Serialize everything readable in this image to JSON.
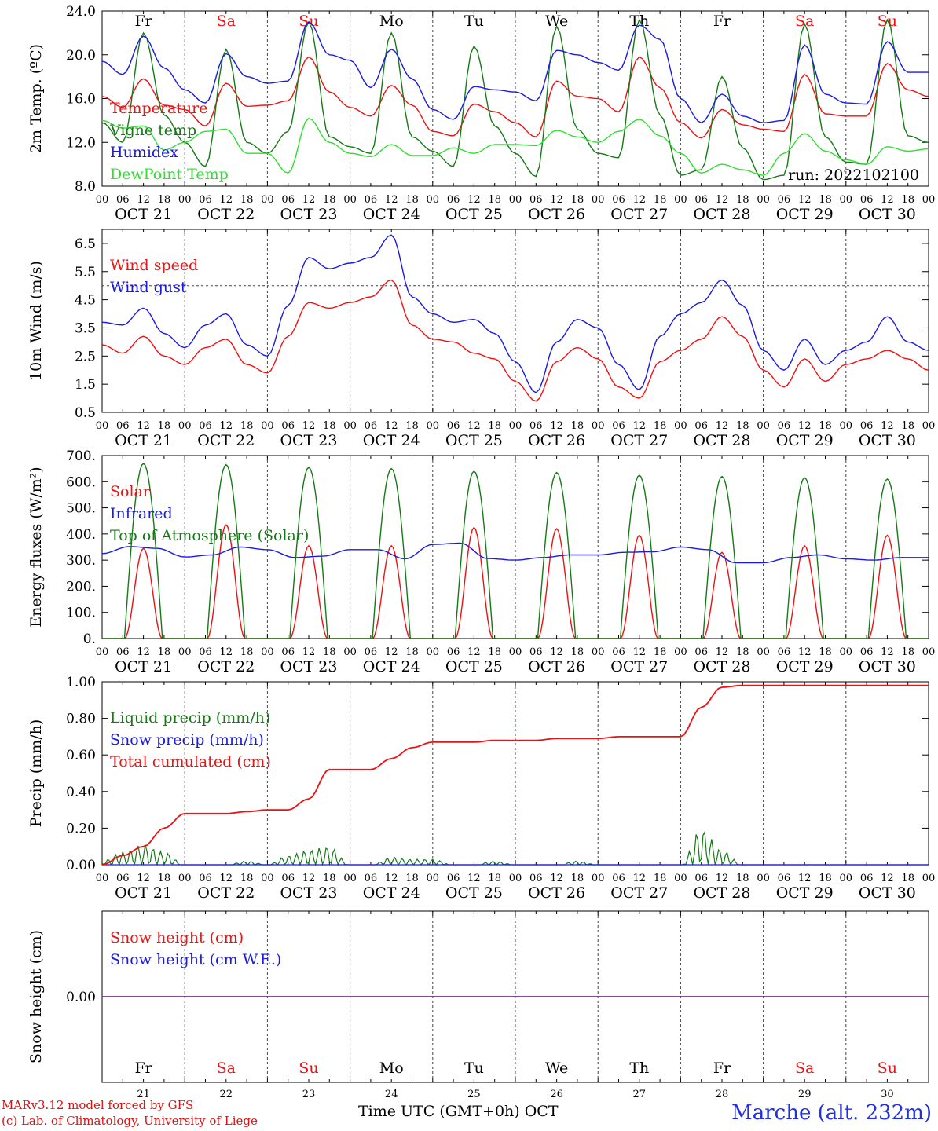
{
  "days": [
    {
      "abbr": "Fr",
      "date": "OCT 21",
      "num": "21",
      "weekend": false
    },
    {
      "abbr": "Sa",
      "date": "OCT 22",
      "num": "22",
      "weekend": true
    },
    {
      "abbr": "Su",
      "date": "OCT 23",
      "num": "23",
      "weekend": true
    },
    {
      "abbr": "Mo",
      "date": "OCT 24",
      "num": "24",
      "weekend": false
    },
    {
      "abbr": "Tu",
      "date": "OCT 25",
      "num": "25",
      "weekend": false
    },
    {
      "abbr": "We",
      "date": "OCT 26",
      "num": "26",
      "weekend": false
    },
    {
      "abbr": "Th",
      "date": "OCT 27",
      "num": "27",
      "weekend": false
    },
    {
      "abbr": "Fr",
      "date": "OCT 28",
      "num": "28",
      "weekend": false
    },
    {
      "abbr": "Sa",
      "date": "OCT 29",
      "num": "29",
      "weekend": true
    },
    {
      "abbr": "Su",
      "date": "OCT 30",
      "num": "30",
      "weekend": true
    }
  ],
  "hour_labels": [
    "00",
    "06",
    "12",
    "18"
  ],
  "end_hour_label": "00",
  "colors": {
    "red": "#ee1111",
    "dark_green": "#157a15",
    "blue": "#1a1ae0",
    "light_green": "#33dd33",
    "purple": "#7a2a9a",
    "weekend": "#ee1111"
  },
  "footer": {
    "credit_line1": "MARv3.12 model forced by GFS",
    "credit_line2": "(c) Lab. of Climatology, University of Liege",
    "time_axis_label": "Time UTC (GMT+0h) OCT",
    "station": "Marche (alt. 232m)"
  },
  "chart_data": [
    {
      "id": "temperature",
      "type": "line",
      "ylabel": "2m Temp. (ºC)",
      "ylim": [
        8,
        24
      ],
      "yticks": [
        "8.0",
        "12.0",
        "16.0",
        "20.0",
        "24.0"
      ],
      "annotation": "run: 2022102100",
      "show_weekday_labels": true,
      "x_hours": [
        0,
        6,
        12,
        18,
        24,
        30,
        36,
        42,
        48,
        54,
        60,
        66,
        72,
        78,
        84,
        90,
        96,
        102,
        108,
        114,
        120,
        126,
        132,
        138,
        144,
        150,
        156,
        162,
        168,
        174,
        180,
        186,
        192,
        198,
        204,
        210,
        216,
        222,
        228,
        234,
        240
      ],
      "series": [
        {
          "name": "Temperature",
          "color": "#ee1111",
          "values": [
            16.2,
            15.2,
            17.8,
            15.4,
            15.0,
            13.5,
            17.4,
            15.3,
            15.4,
            15.8,
            19.8,
            16.6,
            15.2,
            14.4,
            17.2,
            15.4,
            13.0,
            12.6,
            15.5,
            14.8,
            13.8,
            12.5,
            17.6,
            16.2,
            16.0,
            14.8,
            19.8,
            17.0,
            13.8,
            12.4,
            15.0,
            13.6,
            13.2,
            13.0,
            18.2,
            14.6,
            14.4,
            14.4,
            19.2,
            16.8,
            16.2
          ]
        },
        {
          "name": "Vigne temp",
          "color": "#157a15",
          "values": [
            13.8,
            12.0,
            22.0,
            14.5,
            12.0,
            9.8,
            20.5,
            12.0,
            11.0,
            13.0,
            23.0,
            12.5,
            11.6,
            11.0,
            22.0,
            12.5,
            11.2,
            9.8,
            20.8,
            13.5,
            11.0,
            8.9,
            22.6,
            13.2,
            11.0,
            10.6,
            23.2,
            14.5,
            9.0,
            9.5,
            18.0,
            11.5,
            8.6,
            9.0,
            22.8,
            12.5,
            10.2,
            10.0,
            23.2,
            12.6,
            12.0
          ]
        },
        {
          "name": "Humidex",
          "color": "#1a1ae0",
          "values": [
            19.4,
            18.2,
            21.7,
            18.8,
            16.8,
            15.6,
            20.1,
            18.0,
            17.4,
            17.6,
            23.0,
            20.0,
            19.5,
            17.0,
            20.5,
            17.8,
            15.0,
            14.1,
            17.1,
            16.8,
            16.6,
            15.8,
            20.4,
            20.0,
            19.3,
            18.6,
            22.7,
            21.4,
            16.0,
            13.8,
            16.4,
            14.4,
            13.8,
            14.0,
            20.9,
            16.4,
            15.6,
            15.5,
            21.2,
            18.4,
            18.4
          ]
        },
        {
          "name": "DewPoint Temp",
          "color": "#33dd33",
          "values": [
            14.0,
            13.3,
            13.5,
            11.3,
            12.0,
            13.0,
            13.2,
            11.0,
            11.0,
            9.2,
            14.2,
            12.0,
            11.0,
            10.7,
            11.8,
            10.8,
            10.8,
            11.5,
            11.0,
            11.8,
            11.8,
            11.7,
            13.1,
            12.5,
            12.0,
            13.0,
            14.1,
            12.6,
            11.0,
            9.2,
            10.0,
            9.5,
            9.0,
            11.0,
            12.8,
            11.2,
            10.4,
            10.0,
            11.6,
            11.2,
            11.4
          ]
        }
      ]
    },
    {
      "id": "wind",
      "type": "line",
      "ylabel": "10m Wind (m/s)",
      "ylim": [
        0.5,
        7.0
      ],
      "yticks": [
        "0.5",
        "1.5",
        "2.5",
        "3.5",
        "4.5",
        "5.5",
        "6.5"
      ],
      "reference_line": 5.0,
      "x_hours": [
        0,
        6,
        12,
        18,
        24,
        30,
        36,
        42,
        48,
        54,
        60,
        66,
        72,
        78,
        84,
        90,
        96,
        102,
        108,
        114,
        120,
        126,
        132,
        138,
        144,
        150,
        156,
        162,
        168,
        174,
        180,
        186,
        192,
        198,
        204,
        210,
        216,
        222,
        228,
        234,
        240
      ],
      "series": [
        {
          "name": "Wind speed",
          "color": "#ee1111",
          "values": [
            2.9,
            2.6,
            3.2,
            2.5,
            2.2,
            2.8,
            3.1,
            2.2,
            1.9,
            3.2,
            4.4,
            4.2,
            4.4,
            4.6,
            5.2,
            3.6,
            3.1,
            3.0,
            2.6,
            2.4,
            1.6,
            0.9,
            2.3,
            2.8,
            2.4,
            1.4,
            1.0,
            2.3,
            2.7,
            3.1,
            3.9,
            3.2,
            2.0,
            1.4,
            2.4,
            1.6,
            2.2,
            2.4,
            2.7,
            2.4,
            2.0
          ]
        },
        {
          "name": "Wind gust",
          "color": "#1a1ae0",
          "values": [
            3.7,
            3.6,
            4.2,
            3.3,
            2.8,
            3.6,
            4.0,
            2.9,
            2.5,
            4.3,
            6.0,
            5.6,
            5.8,
            6.0,
            6.8,
            4.6,
            4.0,
            3.7,
            3.8,
            3.3,
            2.3,
            1.2,
            3.0,
            3.8,
            3.5,
            2.2,
            1.3,
            3.2,
            4.0,
            4.4,
            5.2,
            4.3,
            2.7,
            2.0,
            3.1,
            2.2,
            2.7,
            3.0,
            3.9,
            3.0,
            2.7
          ]
        }
      ]
    },
    {
      "id": "energy",
      "type": "line",
      "ylabel": "Energy fluxes (W/m²)",
      "ylim": [
        0,
        700
      ],
      "yticks": [
        "0.",
        "100.",
        "200.",
        "300.",
        "400.",
        "500.",
        "600.",
        "700."
      ],
      "sun_window_hours": [
        6.5,
        17.5
      ],
      "series": [
        {
          "name": "Solar",
          "color": "#ee1111",
          "daily_peaks": [
            345,
            435,
            355,
            355,
            425,
            420,
            395,
            330,
            355,
            395
          ]
        },
        {
          "name": "Infrared",
          "color": "#1a1ae0",
          "values": [
            325,
            352,
            345,
            312,
            320,
            350,
            340,
            310,
            315,
            340,
            340,
            305,
            360,
            365,
            306,
            300,
            310,
            320,
            320,
            330,
            332,
            350,
            340,
            290,
            290,
            310,
            320,
            305,
            300,
            310,
            310
          ]
        },
        {
          "name": "Top of Atmosphere (Solar)",
          "color": "#157a15",
          "daily_peaks": [
            670,
            665,
            655,
            650,
            640,
            635,
            625,
            620,
            615,
            610
          ]
        }
      ]
    },
    {
      "id": "precip",
      "type": "line",
      "ylabel": "Precip (mm/h)",
      "ylim": [
        0,
        1.0
      ],
      "yticks": [
        "0.00",
        "0.20",
        "0.40",
        "0.60",
        "0.80",
        "1.00"
      ],
      "series": [
        {
          "name": "Liquid precip (mm/h)",
          "color": "#157a15",
          "values": [
            0.02,
            0.07,
            0.11,
            0.07,
            0.0,
            0.0,
            0.0,
            0.02,
            0.0,
            0.05,
            0.08,
            0.1,
            0.0,
            0.0,
            0.04,
            0.03,
            0.03,
            0.0,
            0.0,
            0.02,
            0.0,
            0.0,
            0.0,
            0.02,
            0.0,
            0.0,
            0.0,
            0.0,
            0.0,
            0.2,
            0.08,
            0.0,
            0.0,
            0.0,
            0.0,
            0.0,
            0.0,
            0.0,
            0.0,
            0.0,
            0.0
          ]
        },
        {
          "name": "Snow precip (mm/h)",
          "color": "#1a1ae0",
          "values": []
        },
        {
          "name": "Total cumulated (cm)",
          "color": "#ee1111",
          "values": [
            0.0,
            0.05,
            0.1,
            0.2,
            0.28,
            0.28,
            0.28,
            0.29,
            0.3,
            0.3,
            0.36,
            0.52,
            0.52,
            0.52,
            0.58,
            0.64,
            0.67,
            0.67,
            0.67,
            0.68,
            0.68,
            0.68,
            0.69,
            0.69,
            0.69,
            0.7,
            0.7,
            0.7,
            0.7,
            0.86,
            0.97,
            0.98,
            0.98,
            0.98,
            0.98,
            0.98,
            0.98,
            0.98,
            0.98,
            0.98,
            0.98
          ]
        }
      ]
    },
    {
      "id": "snow",
      "type": "line",
      "ylabel": "Snow height (cm)",
      "ylim": [
        -1,
        1
      ],
      "yticks": [
        "0.00"
      ],
      "show_weekday_labels": true,
      "series": [
        {
          "name": "Snow height (cm)",
          "color": "#ee1111",
          "values": [
            0.0
          ]
        },
        {
          "name": "Snow height (cm W.E.)",
          "color": "#1a1ae0",
          "values": [
            0.0
          ]
        }
      ]
    }
  ]
}
